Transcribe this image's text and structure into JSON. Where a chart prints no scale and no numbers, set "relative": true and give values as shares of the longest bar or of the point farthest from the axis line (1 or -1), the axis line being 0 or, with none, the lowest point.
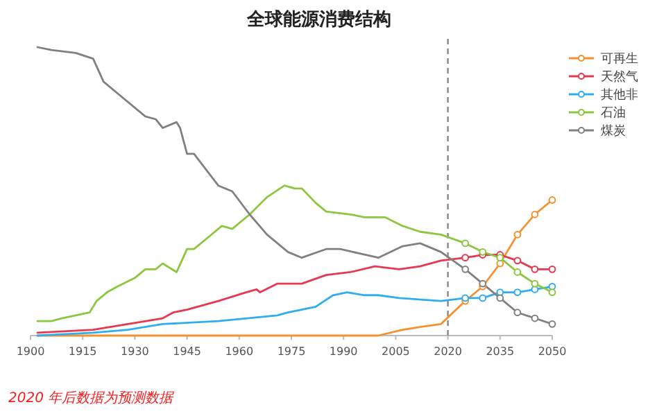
{
  "chart_data": {
    "type": "line",
    "title": "全球能源消费结构",
    "relative": true,
    "xlim": [
      1900,
      2050
    ],
    "xticks": [
      1900,
      1915,
      1930,
      1945,
      1960,
      1975,
      1990,
      2005,
      2020,
      2035,
      2050
    ],
    "legend": "right",
    "line_style": "solid",
    "series": [
      {
        "name": "可再生",
        "color": "#f5922f",
        "x": [
          1902,
          2000,
          2007,
          2012,
          2018,
          2025,
          2030,
          2035,
          2040,
          2045,
          2050
        ],
        "values": [
          0,
          0,
          0.02,
          0.03,
          0.04,
          0.12,
          0.17,
          0.25,
          0.35,
          0.42,
          0.47
        ]
      },
      {
        "name": "天然气",
        "color": "#e8384f",
        "x": [
          1902,
          1918,
          1928,
          1938,
          1941,
          1945,
          1954,
          1962,
          1965,
          1966,
          1971,
          1978,
          1985,
          1992,
          1999,
          2006,
          2012,
          2018,
          2025,
          2030,
          2035,
          2040,
          2045,
          2050
        ],
        "values": [
          0.01,
          0.02,
          0.04,
          0.06,
          0.08,
          0.09,
          0.12,
          0.15,
          0.16,
          0.15,
          0.18,
          0.18,
          0.21,
          0.22,
          0.24,
          0.23,
          0.24,
          0.26,
          0.27,
          0.28,
          0.28,
          0.26,
          0.23,
          0.23
        ]
      },
      {
        "name": "其他非",
        "color": "#2eaef0",
        "x": [
          1902,
          1918,
          1928,
          1938,
          1954,
          1971,
          1974,
          1978,
          1982,
          1987,
          1991,
          1996,
          2000,
          2006,
          2018,
          2025,
          2030,
          2035,
          2040,
          2045,
          2050
        ],
        "values": [
          0,
          0.01,
          0.02,
          0.04,
          0.05,
          0.07,
          0.08,
          0.09,
          0.1,
          0.14,
          0.15,
          0.14,
          0.14,
          0.13,
          0.12,
          0.13,
          0.13,
          0.15,
          0.15,
          0.16,
          0.17
        ]
      },
      {
        "name": "石油",
        "color": "#8dc63f",
        "x": [
          1902,
          1906,
          1909,
          1917,
          1919,
          1922,
          1925,
          1930,
          1933,
          1936,
          1938,
          1942,
          1945,
          1947,
          1950,
          1955,
          1958,
          1963,
          1968,
          1973,
          1976,
          1978,
          1982,
          1985,
          1992,
          1996,
          1999,
          2002,
          2007,
          2012,
          2018,
          2025,
          2030,
          2035,
          2040,
          2045,
          2050
        ],
        "values": [
          0.05,
          0.05,
          0.06,
          0.08,
          0.12,
          0.15,
          0.17,
          0.2,
          0.23,
          0.23,
          0.25,
          0.22,
          0.3,
          0.3,
          0.33,
          0.38,
          0.37,
          0.42,
          0.48,
          0.52,
          0.51,
          0.51,
          0.46,
          0.43,
          0.42,
          0.41,
          0.41,
          0.41,
          0.38,
          0.36,
          0.35,
          0.32,
          0.29,
          0.27,
          0.22,
          0.18,
          0.15
        ]
      },
      {
        "name": "煤炭",
        "color": "#808080",
        "x": [
          1902,
          1906,
          1913,
          1918,
          1921,
          1926,
          1933,
          1936,
          1938,
          1942,
          1943,
          1945,
          1947,
          1954,
          1958,
          1963,
          1968,
          1974,
          1978,
          1985,
          1989,
          2000,
          2007,
          2012,
          2018,
          2025,
          2030,
          2035,
          2040,
          2045,
          2050
        ],
        "values": [
          1.0,
          0.99,
          0.98,
          0.96,
          0.88,
          0.83,
          0.76,
          0.75,
          0.72,
          0.74,
          0.72,
          0.63,
          0.63,
          0.52,
          0.5,
          0.42,
          0.35,
          0.29,
          0.27,
          0.3,
          0.3,
          0.27,
          0.31,
          0.32,
          0.29,
          0.23,
          0.18,
          0.13,
          0.08,
          0.06,
          0.04
        ]
      },
      {
        "type": "scatter",
        "marker": "circle",
        "color": "#f5922f",
        "x": [
          2025,
          2030,
          2035,
          2040,
          2045,
          2050
        ],
        "values": [
          0.12,
          0.17,
          0.25,
          0.35,
          0.42,
          0.47
        ]
      },
      {
        "type": "scatter",
        "marker": "circle",
        "color": "#e8384f",
        "x": [
          2025,
          2030,
          2035,
          2040,
          2045,
          2050
        ],
        "values": [
          0.27,
          0.28,
          0.28,
          0.26,
          0.23,
          0.23
        ]
      },
      {
        "type": "scatter",
        "marker": "circle",
        "color": "#2eaef0",
        "x": [
          2025,
          2030,
          2035,
          2040,
          2045,
          2050
        ],
        "values": [
          0.13,
          0.13,
          0.15,
          0.15,
          0.16,
          0.17
        ]
      },
      {
        "type": "scatter",
        "marker": "circle",
        "color": "#8dc63f",
        "x": [
          2025,
          2030,
          2035,
          2040,
          2045,
          2050
        ],
        "values": [
          0.32,
          0.29,
          0.27,
          0.22,
          0.18,
          0.15
        ]
      },
      {
        "type": "scatter",
        "marker": "circle",
        "color": "#808080",
        "x": [
          2025,
          2030,
          2035,
          2040,
          2045,
          2050
        ],
        "values": [
          0.23,
          0.18,
          0.13,
          0.08,
          0.06,
          0.04
        ]
      }
    ],
    "ref_lines": [
      {
        "axis": "x",
        "value": 2020,
        "color": "#888888",
        "line_style": "dashed"
      }
    ],
    "annotations": [
      "2020 年后数据为预测数据"
    ]
  }
}
